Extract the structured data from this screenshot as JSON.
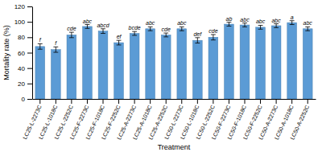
{
  "chart_data": {
    "type": "bar",
    "categories": [
      "LC25-L-2273C",
      "LC25-L-1018C",
      "LC25-L-2252C",
      "LC25-F-2273C",
      "LC25-F-1018C",
      "LC25-F-2252C",
      "LC25-A-2273C",
      "LC25-A-1018C",
      "LC25-A-2252C",
      "LC50-L-2273C",
      "LC50-L-1018C",
      "LC50-L-2252C",
      "LC50-F-2273C",
      "LC50-F-1018C",
      "LC50-F-2252C",
      "LC50-A-2273C",
      "LC50-A-1018C",
      "LC50-A-2252C"
    ],
    "values": [
      68,
      64,
      83,
      94,
      88,
      73,
      85,
      91,
      83,
      91,
      76,
      80,
      97,
      96,
      93,
      95,
      99,
      91
    ],
    "errors": [
      3.5,
      3.5,
      3.5,
      2.5,
      3.0,
      3.0,
      2.5,
      2.5,
      2.5,
      2.5,
      3.5,
      3.5,
      2.5,
      2.5,
      2.5,
      2.5,
      2.5,
      2.5
    ],
    "annotations": [
      "f",
      "f",
      "cde",
      "abc",
      "abcd",
      "ef",
      "bcde",
      "abc",
      "cde",
      "abc",
      "def",
      "cde",
      "ab",
      "abc",
      "abc",
      "abc",
      "a",
      "abc"
    ],
    "color": "#5b9bd5",
    "xlabel": "Treatment",
    "ylabel": "Mortality rate (%)",
    "ylim": [
      0,
      120
    ],
    "yticks": [
      0,
      20,
      40,
      60,
      80,
      100,
      120
    ]
  }
}
